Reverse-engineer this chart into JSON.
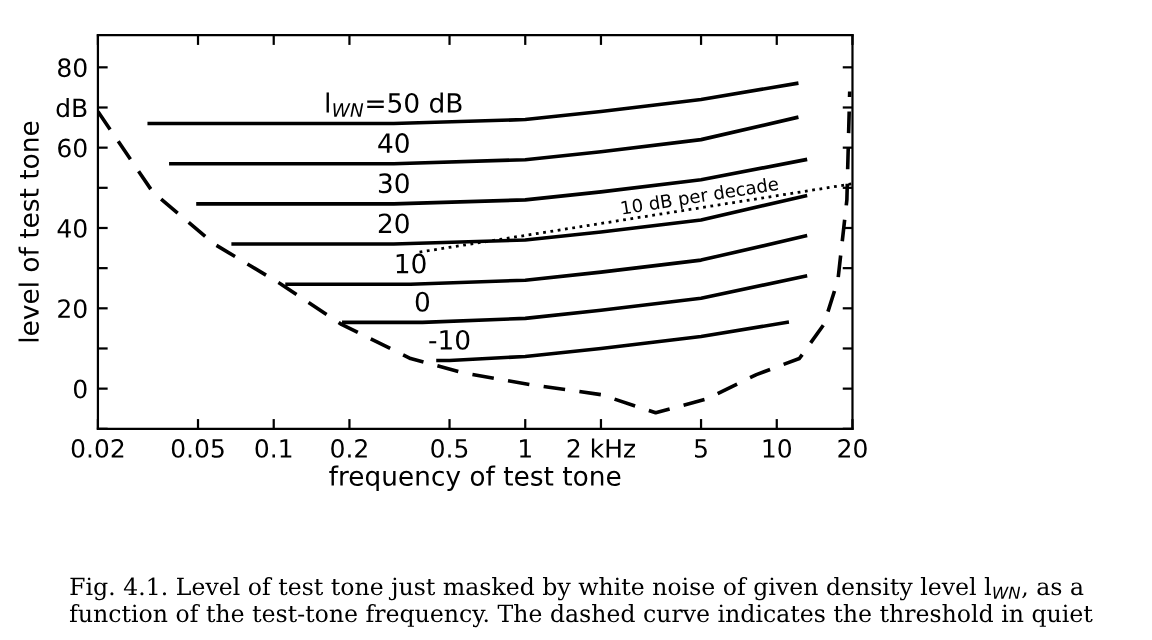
{
  "chart_data": {
    "type": "line",
    "xlabel": "frequency of test tone",
    "ylabel": "level of test tone",
    "log": "x",
    "grid": false,
    "marker": "none",
    "xlim": [
      0.02,
      20
    ],
    "xticks": [
      0.02,
      0.05,
      0.1,
      0.2,
      0.5,
      1,
      {
        "value": 2,
        "label": "2 kHz"
      },
      5,
      10,
      20
    ],
    "ylim": [
      -10,
      88
    ],
    "yticks": [
      {
        "value": -10,
        "label": null
      },
      0,
      {
        "value": 10,
        "label": null
      },
      20,
      {
        "value": 30,
        "label": null
      },
      40,
      {
        "value": 50,
        "label": null
      },
      60,
      {
        "value": 70,
        "label": "dB"
      },
      80
    ],
    "series": [
      {
        "name": "l$_{WN}$=50 dB",
        "color": "#000000",
        "line_style": "solid",
        "x": [
          0.032,
          0.3,
          1,
          2,
          5,
          12
        ],
        "values": [
          66,
          66,
          67,
          69,
          72,
          76
        ]
      },
      {
        "name": "40",
        "color": "#000000",
        "line_style": "solid",
        "x": [
          0.039,
          0.3,
          1,
          2,
          5,
          12
        ],
        "values": [
          56,
          56,
          57,
          59,
          62,
          67.5
        ]
      },
      {
        "name": "30",
        "color": "#000000",
        "line_style": "solid",
        "x": [
          0.05,
          0.3,
          1,
          2,
          5,
          13
        ],
        "values": [
          46,
          46,
          47,
          49,
          52,
          57
        ]
      },
      {
        "name": "20",
        "color": "#000000",
        "line_style": "solid",
        "x": [
          0.069,
          0.3,
          1,
          2,
          5,
          13
        ],
        "values": [
          36,
          36,
          37,
          39,
          42,
          48
        ]
      },
      {
        "name": "10",
        "color": "#000000",
        "line_style": "solid",
        "x": [
          0.113,
          0.35,
          1,
          2,
          5,
          13
        ],
        "values": [
          26,
          26,
          27,
          29,
          32,
          38
        ]
      },
      {
        "name": "0",
        "color": "#000000",
        "line_style": "solid",
        "x": [
          0.19,
          0.39,
          1,
          2,
          5,
          13
        ],
        "values": [
          16.5,
          16.5,
          17.5,
          19.5,
          22.5,
          28
        ]
      },
      {
        "name": "-10",
        "color": "#000000",
        "line_style": "solid",
        "x": [
          0.45,
          0.5,
          1,
          2,
          5,
          11
        ],
        "values": [
          7,
          7,
          8,
          10,
          13,
          16.5
        ]
      },
      {
        "color": "#000000",
        "line_style": "dotted",
        "x": [
          0.38,
          20
        ],
        "values": [
          34,
          51
        ]
      },
      {
        "color": "#000000",
        "line_style": "dashed",
        "x": [
          0.02,
          0.033,
          0.058,
          0.107,
          0.186,
          0.35,
          0.56,
          1.05,
          2,
          3.3,
          5.3,
          8.3,
          12.3,
          15.4,
          17.5,
          19,
          19.5
        ],
        "values": [
          69,
          49,
          36,
          26,
          16,
          7.5,
          4,
          1,
          -1.5,
          -6,
          -2.5,
          3.5,
          7.5,
          16,
          27,
          47,
          74
        ]
      }
    ],
    "annotations": [
      {
        "text": "10 dB per decade",
        "x": 5,
        "y": 45.5
      },
      "Fig. 4.1. Level of test tone just masked by white noise of given density level l$_{WN}$, as a function of the test-tone frequency. The dashed curve indicates the threshold in quiet"
    ]
  }
}
